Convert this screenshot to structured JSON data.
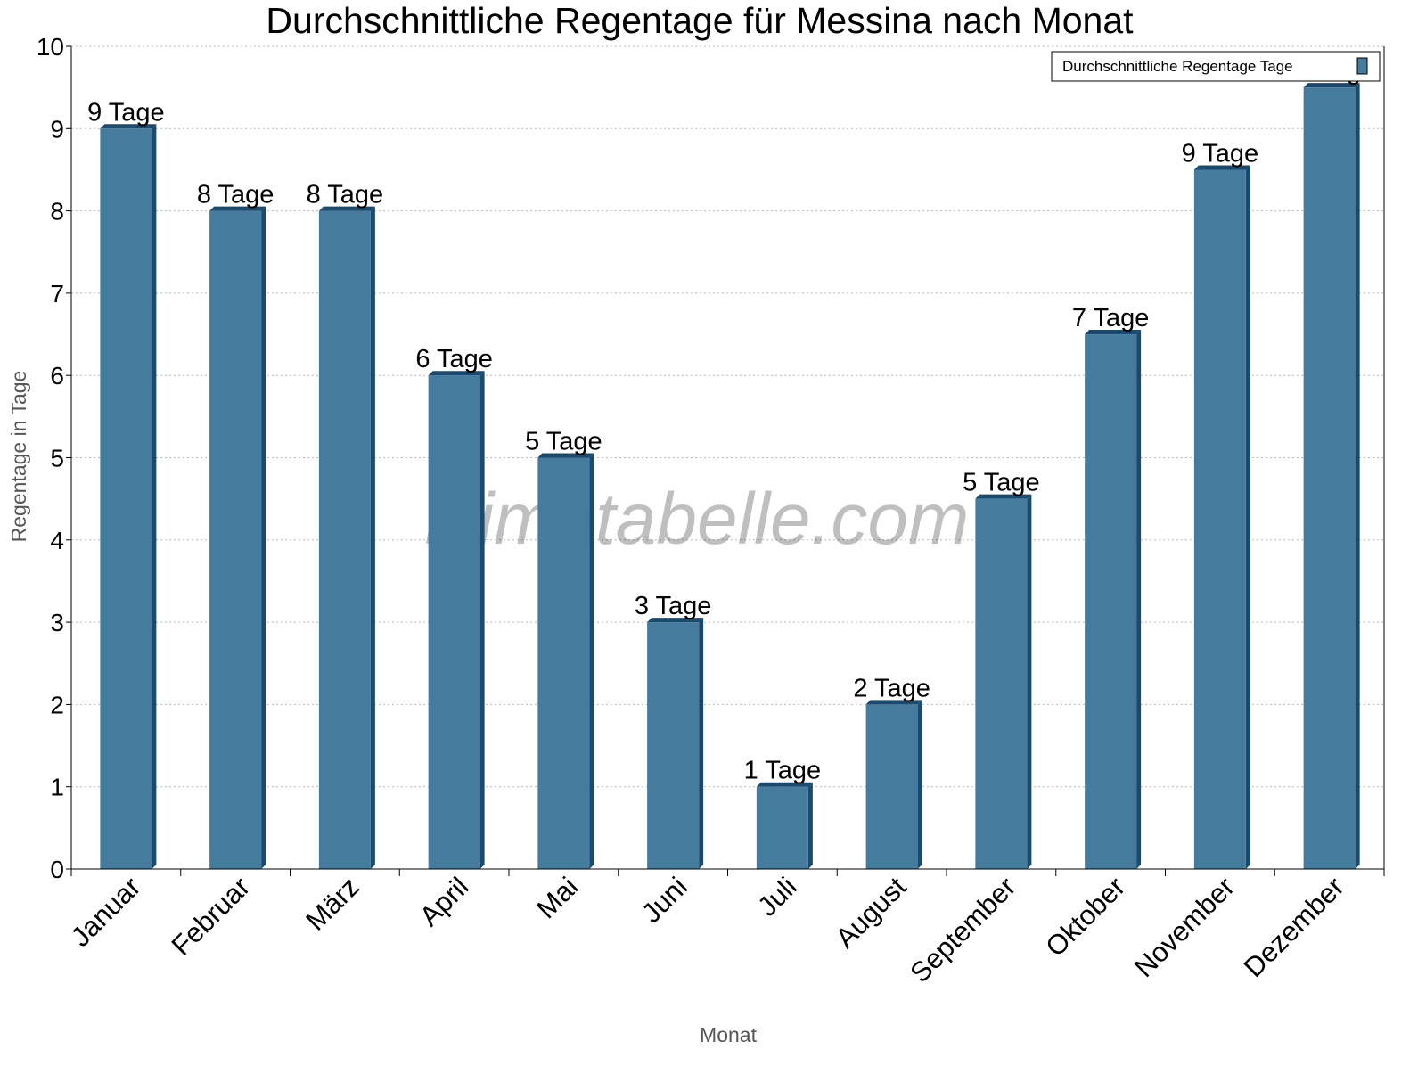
{
  "chart_data": {
    "type": "bar",
    "title": "Durchschnittliche Regentage für Messina nach Monat",
    "xlabel": "Monat",
    "ylabel": "Regentage in Tage",
    "ylim": [
      0,
      10
    ],
    "yticks": [
      0,
      1,
      2,
      3,
      4,
      5,
      6,
      7,
      8,
      9,
      10
    ],
    "grid": true,
    "legend_position": "top-right",
    "categories": [
      "Januar",
      "Februar",
      "März",
      "April",
      "Mai",
      "Juni",
      "Juli",
      "August",
      "September",
      "Oktober",
      "November",
      "Dezember"
    ],
    "series": [
      {
        "name": "Durchschnittliche Regentage Tage",
        "values": [
          9,
          8,
          8,
          6,
          5,
          3,
          1,
          2,
          4.5,
          6.5,
          8.5,
          9.5
        ],
        "labels": [
          "9 Tage",
          "8 Tage",
          "8 Tage",
          "6 Tage",
          "5 Tage",
          "3 Tage",
          "1 Tage",
          "2 Tage",
          "5 Tage",
          "7 Tage",
          "9 Tage",
          "10 Tage"
        ],
        "color": "#457b9d",
        "side_color": "#1a4a6e"
      }
    ],
    "watermark": "klimatabelle.com"
  }
}
